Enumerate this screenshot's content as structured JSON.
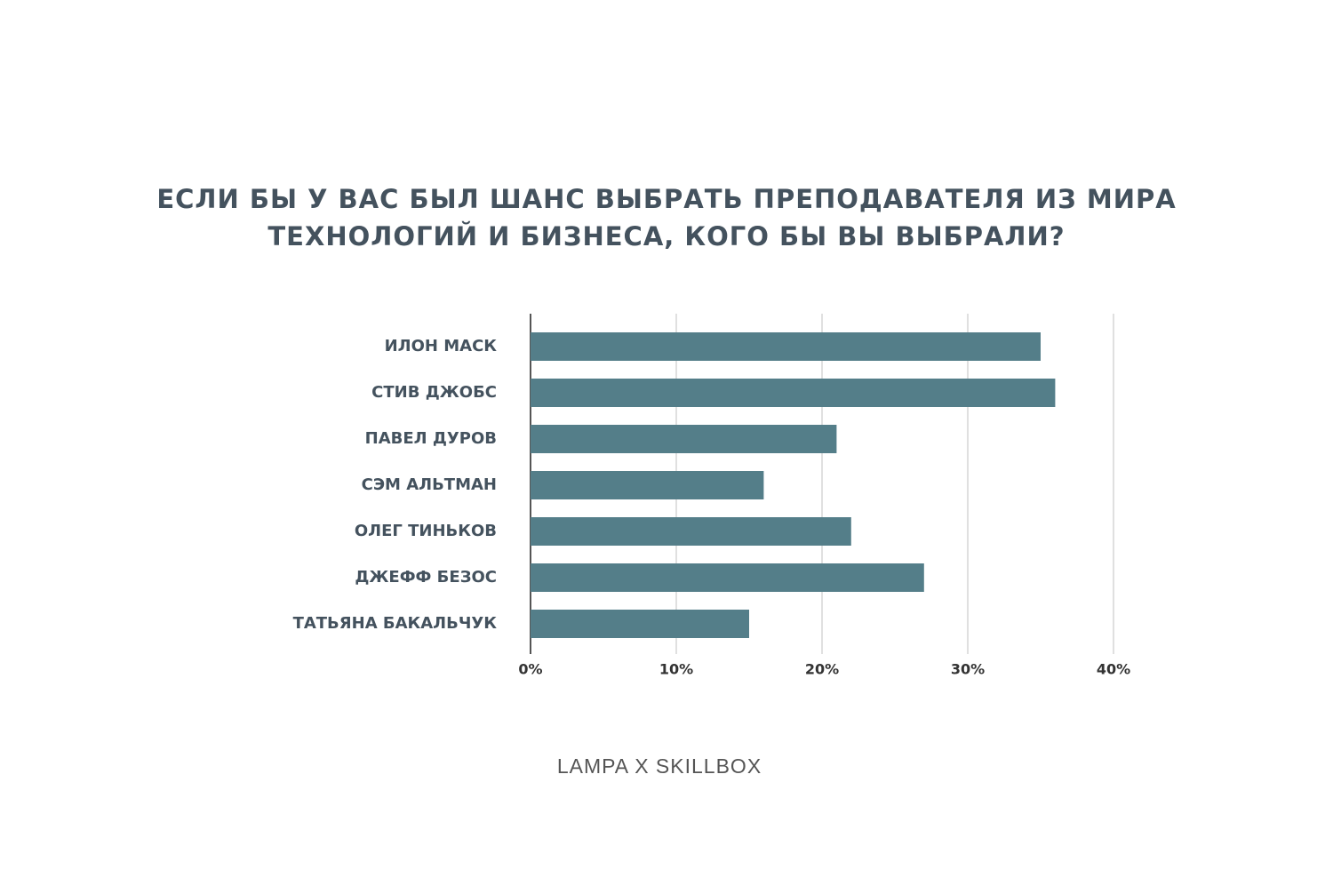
{
  "chart_data": {
    "type": "bar",
    "orientation": "horizontal",
    "title": [
      "ЕСЛИ БЫ У ВАС БЫЛ ШАНС ВЫБРАТЬ ПРЕПОДАВАТЕЛЯ ИЗ МИРА",
      "ТЕХНОЛОГИЙ И БИЗНЕСА, КОГО БЫ ВЫ ВЫБРАЛИ?"
    ],
    "categories": [
      "ИЛОН МАСК",
      "СТИВ ДЖОБС",
      "ПАВЕЛ ДУРОВ",
      "СЭМ АЛЬТМАН",
      "ОЛЕГ ТИНЬКОВ",
      "ДЖЕФФ БЕЗОС",
      "ТАТЬЯНА БАКАЛЬЧУК"
    ],
    "values": [
      35,
      36,
      21,
      16,
      22,
      27,
      15
    ],
    "color": "#547e89",
    "xlim": [
      0,
      40
    ],
    "xticks": [
      {
        "value": 0,
        "label": "0%"
      },
      {
        "value": 10,
        "label": "10%"
      },
      {
        "value": 20,
        "label": "20%"
      },
      {
        "value": 30,
        "label": "30%"
      },
      {
        "value": 40,
        "label": "40%"
      }
    ],
    "grid": true,
    "footer": "LAMPA X SKILLBOX"
  }
}
